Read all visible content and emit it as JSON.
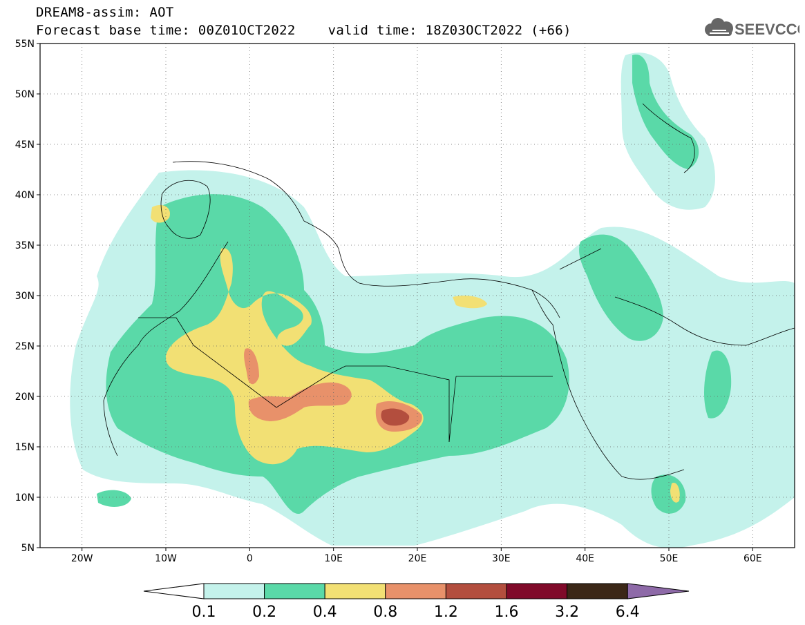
{
  "header": {
    "title_line1": "DREAM8-assim: AOT",
    "title_line2": "Forecast base time: 00Z01OCT2022    valid time: 18Z03OCT2022 (+66)",
    "logo_text": "SEEVCCC",
    "logo_icon": "cloud-icon"
  },
  "map": {
    "lon_range": [
      -25,
      65
    ],
    "lat_range": [
      5,
      55
    ],
    "lon_ticks": [
      {
        "value": -20,
        "label": "20W"
      },
      {
        "value": -10,
        "label": "10W"
      },
      {
        "value": 0,
        "label": "0"
      },
      {
        "value": 10,
        "label": "10E"
      },
      {
        "value": 20,
        "label": "20E"
      },
      {
        "value": 30,
        "label": "30E"
      },
      {
        "value": 40,
        "label": "40E"
      },
      {
        "value": 50,
        "label": "50E"
      },
      {
        "value": 60,
        "label": "60E"
      }
    ],
    "lat_ticks": [
      {
        "value": 55,
        "label": "55N"
      },
      {
        "value": 50,
        "label": "50N"
      },
      {
        "value": 45,
        "label": "45N"
      },
      {
        "value": 40,
        "label": "40N"
      },
      {
        "value": 35,
        "label": "35N"
      },
      {
        "value": 30,
        "label": "30N"
      },
      {
        "value": 25,
        "label": "25N"
      },
      {
        "value": 20,
        "label": "20N"
      },
      {
        "value": 15,
        "label": "15N"
      },
      {
        "value": 10,
        "label": "10N"
      },
      {
        "value": 5,
        "label": "5N"
      }
    ],
    "grid": "dotted"
  },
  "colorbar": {
    "labels": [
      "0.1",
      "0.2",
      "0.4",
      "0.8",
      "1.2",
      "1.6",
      "3.2",
      "6.4"
    ],
    "under_color": "#ffffff",
    "colors": [
      "#c4f2eb",
      "#5ad9a8",
      "#f2e074",
      "#e8916a",
      "#b34e3e",
      "#800a2a",
      "#3b2717"
    ],
    "over_color": "#8e6aa8"
  }
}
